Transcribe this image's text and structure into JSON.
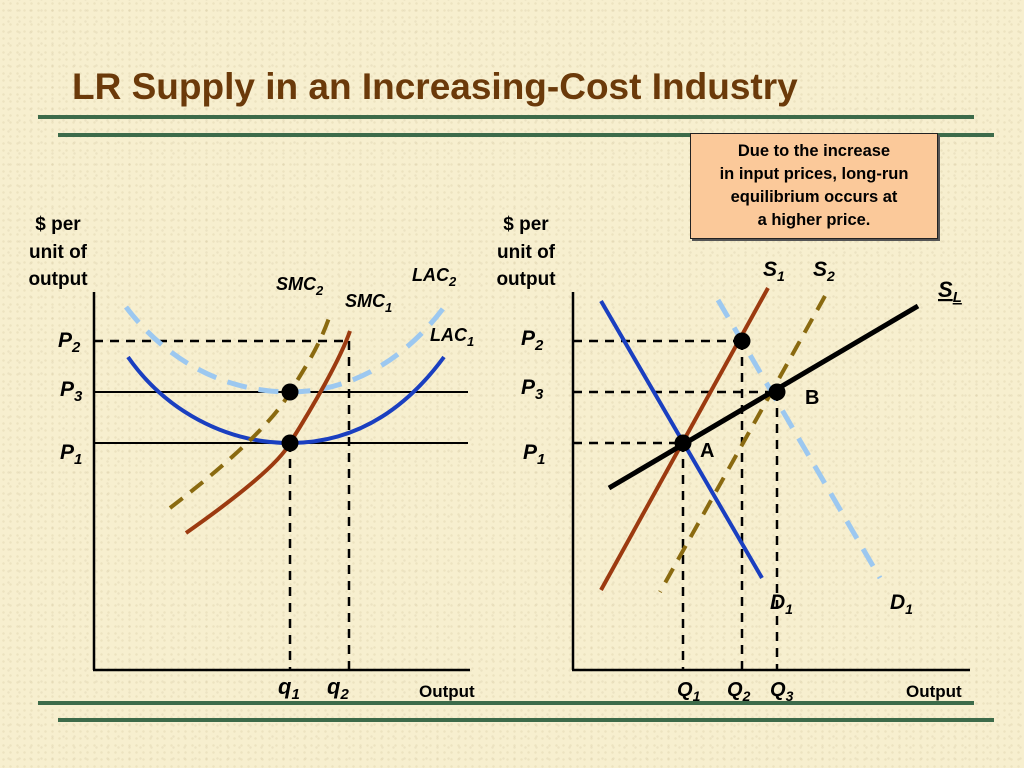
{
  "title": "LR Supply in an Increasing-Cost Industry",
  "callout": {
    "lines": [
      "Due to the increase",
      "in input prices, long-run",
      "equilibrium occurs at",
      "a higher price."
    ]
  },
  "left_panel": {
    "y_axis_label": [
      "$ per",
      "unit of",
      "output"
    ],
    "x_axis_label": "Output",
    "price_labels": {
      "p2": "P",
      "p2_sub": "2",
      "p3": "P",
      "p3_sub": "3",
      "p1": "P",
      "p1_sub": "1"
    },
    "curve_labels": {
      "smc2": "SMC",
      "smc2_sub": "2",
      "smc1": "SMC",
      "smc1_sub": "1",
      "lac2": "LAC",
      "lac2_sub": "2",
      "lac1": "LAC",
      "lac1_sub": "1"
    },
    "quantity_labels": {
      "q1": "q",
      "q1_sub": "1",
      "q2": "q",
      "q2_sub": "2"
    }
  },
  "right_panel": {
    "y_axis_label": [
      "$ per",
      "unit of",
      "output"
    ],
    "x_axis_label": "Output",
    "price_labels": {
      "p2": "P",
      "p2_sub": "2",
      "p3": "P",
      "p3_sub": "3",
      "p1": "P",
      "p1_sub": "1"
    },
    "curve_labels": {
      "s1": "S",
      "s1_sub": "1",
      "s2": "S",
      "s2_sub": "2",
      "sl": "S",
      "sl_sub": "L",
      "d1_solid": "D",
      "d1_solid_sub": "1",
      "d1_dashed": "D",
      "d1_dashed_sub": "1"
    },
    "point_labels": {
      "a": "A",
      "b": "B"
    },
    "quantity_labels": {
      "q1": "Q",
      "q1_sub": "1",
      "q2": "Q",
      "q2_sub": "2",
      "q3": "Q",
      "q3_sub": "3"
    }
  },
  "colors": {
    "title": "#6b3a0a",
    "rule": "#3d6b4a",
    "callout_bg": "#fbc99a",
    "smc_solid": "#9c3a10",
    "smc_dashed": "#8a6a10",
    "lac_solid": "#1a3fc0",
    "lac_dashed": "#9cc8f0",
    "demand_solid": "#1a3fc0",
    "demand_dashed": "#9cc8f0",
    "long_run_supply": "#000000"
  }
}
